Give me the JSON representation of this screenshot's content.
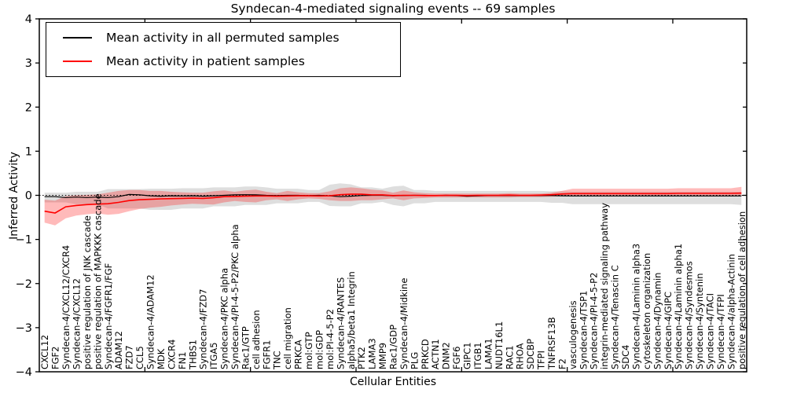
{
  "title": "Syndecan-4-mediated signaling events -- 69 samples",
  "legend": {
    "items": [
      {
        "label": "Mean activity in all permuted samples",
        "color": "#000000"
      },
      {
        "label": "Mean activity in patient samples",
        "color": "#ff0000"
      }
    ]
  },
  "chart_data": {
    "type": "line",
    "title": "Syndecan-4-mediated signaling events -- 69 samples",
    "xlabel": "Cellular Entities",
    "ylabel": "Inferred Activity",
    "ylim": [
      -4,
      4
    ],
    "xlim": [
      0,
      67
    ],
    "yticks": [
      -4,
      -3,
      -2,
      -1,
      0,
      1,
      2,
      3,
      4
    ],
    "xticks": [
      10,
      20,
      30,
      40,
      50,
      60
    ],
    "grid": false,
    "legend_position": "upper left",
    "zero_line": "dotted",
    "categories": [
      "CXCL12",
      "FGF2",
      "Syndecan-4/CXCL12/CXCR4",
      "Syndecan-4/CXCL12",
      "positive regulation of JNK cascade",
      "positive regulation of MAPKKK cascade",
      "Syndecan-4/FGFR1/FGF",
      "ADAM12",
      "FZD7",
      "CCL5",
      "Syndecan-4/ADAM12",
      "MDK",
      "CXCR4",
      "FN1",
      "THBS1",
      "Syndecan-4/FZD7",
      "ITGA5",
      "Syndecan-4/PKC alpha",
      "Syndecan-4/PI-4-5-P2/PKC alpha",
      "Rac1/GTP",
      "cell adhesion",
      "FGFR1",
      "TNC",
      "cell migration",
      "PRKCA",
      "mol:GTP",
      "mol:GDP",
      "mol:PI-4-5-P2",
      "Syndecan-4/RANTES",
      "alpha5/beta1 Integrin",
      "PTK2",
      "LAMA3",
      "MMP9",
      "Rac1/GDP",
      "Syndecan-4/Midkine",
      "PLG",
      "PRKCD",
      "ACTN1",
      "DNM2",
      "FGF6",
      "GIPC1",
      "ITGB1",
      "LAMA1",
      "NUDT16L1",
      "RAC1",
      "RHOA",
      "SDCBP",
      "TFPI",
      "TNFRSF13B",
      "F2",
      "vasculogenesis",
      "Syndecan-4/TSP1",
      "Syndecan-4/PI-4-5-P2",
      "integrin-mediated signaling pathway",
      "Syndecan-4/Tenascin C",
      "SDC4",
      "Syndecan-4/Laminin alpha3",
      "cytoskeleton organization",
      "Syndecan-4/Dynamin",
      "Syndecan-4/GIPC",
      "Syndecan-4/Laminin alpha1",
      "Syndecan-4/Syndesmos",
      "Syndecan-4/Syntenin",
      "Syndecan-4/TACI",
      "Syndecan-4/TFPI",
      "Syndecan-4/alpha-Actinin",
      "positive regulation of cell adhesion"
    ],
    "series": [
      {
        "name": "Mean activity in all permuted samples",
        "color": "#000000",
        "values": [
          -0.03,
          -0.03,
          -0.05,
          -0.04,
          -0.05,
          -0.04,
          -0.05,
          -0.03,
          0.02,
          0.01,
          -0.01,
          -0.02,
          -0.01,
          -0.015,
          -0.01,
          -0.02,
          -0.01,
          0.0,
          0.01,
          0.015,
          0.01,
          0.0,
          -0.005,
          0.0,
          0.0,
          -0.005,
          0.0,
          -0.01,
          -0.03,
          -0.02,
          -0.005,
          0.0,
          0.0,
          -0.01,
          -0.005,
          0.0,
          0.0,
          -0.005,
          0.0,
          -0.005,
          -0.02,
          -0.01,
          -0.005,
          -0.005,
          -0.005,
          -0.005,
          -0.005,
          -0.005,
          -0.005,
          -0.01,
          -0.015,
          -0.015,
          -0.015,
          -0.015,
          -0.015,
          -0.015,
          -0.015,
          -0.015,
          -0.015,
          -0.015,
          -0.015,
          -0.015,
          -0.015,
          -0.015,
          -0.015,
          -0.015,
          -0.015
        ]
      },
      {
        "name": "Mean activity in patient samples",
        "color": "#ff0000",
        "values": [
          -0.36,
          -0.4,
          -0.26,
          -0.23,
          -0.21,
          -0.2,
          -0.19,
          -0.16,
          -0.12,
          -0.1,
          -0.09,
          -0.08,
          -0.075,
          -0.07,
          -0.065,
          -0.07,
          -0.055,
          -0.03,
          -0.025,
          -0.02,
          -0.015,
          -0.015,
          -0.02,
          -0.015,
          -0.01,
          -0.01,
          -0.015,
          -0.01,
          0.015,
          0.025,
          0.025,
          0.01,
          0.01,
          -0.005,
          0.0,
          0.0,
          -0.005,
          -0.005,
          0.0,
          0.0,
          -0.005,
          0.0,
          0.0,
          0.0,
          0.005,
          0.0,
          0.0,
          0.005,
          0.015,
          0.03,
          0.04,
          0.04,
          0.04,
          0.04,
          0.04,
          0.04,
          0.04,
          0.04,
          0.04,
          0.04,
          0.045,
          0.045,
          0.045,
          0.045,
          0.045,
          0.045,
          0.05
        ]
      }
    ],
    "bands": [
      {
        "name": "permuted-std-band",
        "fill": "#000000",
        "opacity": 0.13,
        "upper": [
          0.06,
          0.06,
          0.06,
          0.08,
          0.08,
          0.08,
          0.14,
          0.14,
          0.14,
          0.14,
          0.15,
          0.15,
          0.15,
          0.16,
          0.16,
          0.16,
          0.18,
          0.18,
          0.18,
          0.2,
          0.2,
          0.18,
          0.15,
          0.15,
          0.15,
          0.12,
          0.12,
          0.24,
          0.27,
          0.25,
          0.18,
          0.18,
          0.15,
          0.2,
          0.22,
          0.12,
          0.12,
          0.1,
          0.1,
          0.1,
          0.1,
          0.1,
          0.1,
          0.1,
          0.1,
          0.1,
          0.1,
          0.1,
          0.09,
          0.09,
          0.08,
          0.08,
          0.08,
          0.08,
          0.08,
          0.08,
          0.08,
          0.08,
          0.08,
          0.08,
          0.08,
          0.08,
          0.08,
          0.08,
          0.08,
          0.08,
          0.08
        ],
        "lower": [
          -0.16,
          -0.16,
          -0.16,
          -0.2,
          -0.2,
          -0.2,
          -0.3,
          -0.3,
          -0.3,
          -0.3,
          -0.33,
          -0.33,
          -0.33,
          -0.3,
          -0.3,
          -0.3,
          -0.25,
          -0.25,
          -0.25,
          -0.22,
          -0.22,
          -0.22,
          -0.18,
          -0.18,
          -0.18,
          -0.15,
          -0.15,
          -0.24,
          -0.25,
          -0.25,
          -0.18,
          -0.18,
          -0.15,
          -0.22,
          -0.25,
          -0.18,
          -0.18,
          -0.15,
          -0.15,
          -0.15,
          -0.15,
          -0.15,
          -0.15,
          -0.15,
          -0.15,
          -0.15,
          -0.15,
          -0.15,
          -0.17,
          -0.17,
          -0.2,
          -0.2,
          -0.2,
          -0.2,
          -0.2,
          -0.2,
          -0.2,
          -0.2,
          -0.2,
          -0.2,
          -0.2,
          -0.2,
          -0.2,
          -0.2,
          -0.2,
          -0.2,
          -0.22
        ]
      },
      {
        "name": "patient-std-band",
        "fill": "#ff0000",
        "opacity": 0.27,
        "upper": [
          -0.1,
          -0.12,
          -0.02,
          0.0,
          0.01,
          0.02,
          0.06,
          0.1,
          0.12,
          0.12,
          0.1,
          0.1,
          0.08,
          0.07,
          0.06,
          0.06,
          0.09,
          0.11,
          0.08,
          0.11,
          0.13,
          0.08,
          0.05,
          0.1,
          0.07,
          0.05,
          0.05,
          0.09,
          0.16,
          0.18,
          0.16,
          0.13,
          0.11,
          0.06,
          0.11,
          0.07,
          0.05,
          0.04,
          0.04,
          0.04,
          0.04,
          0.04,
          0.04,
          0.04,
          0.05,
          0.04,
          0.04,
          0.04,
          0.06,
          0.1,
          0.15,
          0.15,
          0.15,
          0.15,
          0.15,
          0.15,
          0.15,
          0.15,
          0.15,
          0.15,
          0.16,
          0.16,
          0.16,
          0.16,
          0.16,
          0.16,
          0.19
        ],
        "lower": [
          -0.62,
          -0.68,
          -0.52,
          -0.46,
          -0.43,
          -0.41,
          -0.44,
          -0.42,
          -0.36,
          -0.31,
          -0.28,
          -0.26,
          -0.23,
          -0.21,
          -0.19,
          -0.2,
          -0.21,
          -0.16,
          -0.13,
          -0.15,
          -0.16,
          -0.11,
          -0.09,
          -0.13,
          -0.09,
          -0.07,
          -0.08,
          -0.11,
          -0.13,
          -0.13,
          -0.11,
          -0.11,
          -0.09,
          -0.07,
          -0.11,
          -0.07,
          -0.06,
          -0.05,
          -0.05,
          -0.05,
          -0.05,
          -0.05,
          -0.05,
          -0.05,
          -0.05,
          -0.04,
          -0.04,
          -0.04,
          -0.03,
          -0.02,
          -0.02,
          -0.02,
          -0.02,
          -0.02,
          -0.02,
          -0.02,
          -0.02,
          -0.02,
          -0.02,
          -0.02,
          -0.02,
          -0.02,
          -0.02,
          -0.02,
          -0.02,
          -0.02,
          -0.01
        ]
      }
    ]
  }
}
